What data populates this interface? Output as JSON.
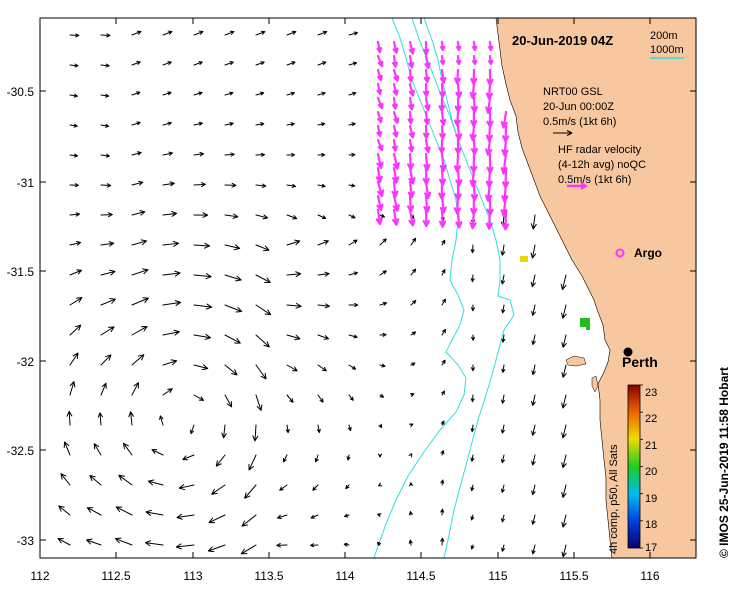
{
  "map": {
    "title": "20-Jun-2019 04Z",
    "credit": "© IMOS 25-Jun-2019 11:58 Hobart",
    "x_ticks": [
      "112",
      "112.5",
      "113",
      "113.5",
      "114",
      "114.5",
      "115",
      "115.5",
      "116"
    ],
    "y_ticks": [
      "-30.5",
      "-31",
      "-31.5",
      "-32",
      "-32.5",
      "-33"
    ],
    "x_range": [
      112,
      116.3
    ],
    "y_range": [
      -33.1,
      -30.1
    ],
    "land_color": "#f7c8a0",
    "isobath_color": "#33dddd",
    "radar_color": "#ff33ff",
    "isobath_legend": {
      "line1": "200m",
      "line2": "1000m"
    },
    "gsl_legend": {
      "line1": "NRT00 GSL",
      "line2": "20-Jun 00:00Z",
      "line3": "0.5m/s (1kt 6h)"
    },
    "radar_legend": {
      "line1": "HF radar velocity",
      "line2": "(4-12h avg) noQC",
      "line3": "0.5m/s (1kt 6h)"
    },
    "places": {
      "argo": {
        "label": "Argo",
        "lon": 115.7,
        "lat": -31.44
      },
      "perth": {
        "label": "Perth",
        "lon": 115.86,
        "lat": -31.95
      }
    }
  },
  "colorbar": {
    "label": "4h comp, p50, All Sats",
    "ticks": [
      "23",
      "22",
      "21",
      "20",
      "19",
      "18",
      "17"
    ],
    "range": [
      17,
      23
    ]
  }
}
